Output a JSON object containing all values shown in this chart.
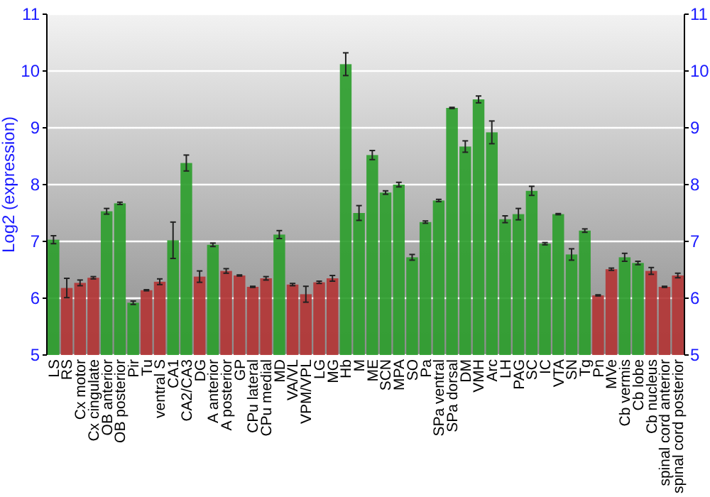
{
  "chart_data": {
    "type": "bar",
    "ylabel": "Log2 (expression)",
    "categories": [
      "LS",
      "RS",
      "Cx motor",
      "Cx cingulate",
      "OB anterior",
      "OB posterior",
      "Pir",
      "Tu",
      "ventral S",
      "CA1",
      "CA2/CA3",
      "DG",
      "A anterior",
      "A posterior",
      "GP",
      "CPu lateral",
      "CPu medial",
      "MD",
      "VA/VL",
      "VPM/VPL",
      "LG",
      "MG",
      "Hb",
      "M",
      "ME",
      "SCN",
      "MPA",
      "SO",
      "Pa",
      "SPa ventral",
      "SPa dorsal",
      "DM",
      "VMH",
      "Arc",
      "LH",
      "PAG",
      "SC",
      "IC",
      "VTA",
      "SN",
      "Tg",
      "Pn",
      "MVe",
      "Cb vermis",
      "Cb lobe",
      "Cb nucleus",
      "spinal cord anterior",
      "spinal cord posterior"
    ],
    "values": [
      7.03,
      6.18,
      6.27,
      6.36,
      7.53,
      7.67,
      5.92,
      6.14,
      6.29,
      7.02,
      8.38,
      6.38,
      6.94,
      6.48,
      6.4,
      6.2,
      6.35,
      7.12,
      6.24,
      6.07,
      6.28,
      6.35,
      10.12,
      7.5,
      8.52,
      7.86,
      8.0,
      6.72,
      7.34,
      7.72,
      9.35,
      8.67,
      9.5,
      8.92,
      7.39,
      7.48,
      7.89,
      6.96,
      7.48,
      6.77,
      7.19,
      6.05,
      6.51,
      6.72,
      6.62,
      6.48,
      6.2,
      6.4
    ],
    "errors": [
      0.07,
      0.17,
      0.05,
      0.02,
      0.05,
      0.02,
      0.03,
      0.01,
      0.05,
      0.32,
      0.14,
      0.1,
      0.03,
      0.04,
      0.01,
      0.01,
      0.03,
      0.07,
      0.02,
      0.14,
      0.02,
      0.05,
      0.2,
      0.13,
      0.08,
      0.03,
      0.04,
      0.05,
      0.02,
      0.02,
      0.01,
      0.1,
      0.06,
      0.2,
      0.06,
      0.1,
      0.08,
      0.02,
      0.01,
      0.1,
      0.03,
      0.01,
      0.02,
      0.07,
      0.03,
      0.06,
      0.01,
      0.04
    ],
    "colors": [
      "#2e9e2e",
      "#b33636",
      "#b33636",
      "#b33636",
      "#2e9e2e",
      "#2e9e2e",
      "#2e9e2e",
      "#b33636",
      "#b33636",
      "#2e9e2e",
      "#2e9e2e",
      "#b33636",
      "#2e9e2e",
      "#b33636",
      "#b33636",
      "#b33636",
      "#b33636",
      "#2e9e2e",
      "#b33636",
      "#b33636",
      "#b33636",
      "#b33636",
      "#2e9e2e",
      "#2e9e2e",
      "#2e9e2e",
      "#2e9e2e",
      "#2e9e2e",
      "#2e9e2e",
      "#2e9e2e",
      "#2e9e2e",
      "#2e9e2e",
      "#2e9e2e",
      "#2e9e2e",
      "#2e9e2e",
      "#2e9e2e",
      "#2e9e2e",
      "#2e9e2e",
      "#2e9e2e",
      "#2e9e2e",
      "#2e9e2e",
      "#2e9e2e",
      "#b33636",
      "#b33636",
      "#2e9e2e",
      "#2e9e2e",
      "#b33636",
      "#b33636",
      "#b33636"
    ],
    "ylim": [
      5,
      11
    ],
    "yticks": [
      5,
      6,
      7,
      8,
      9,
      10,
      11
    ],
    "y2lim": [
      5,
      11
    ],
    "y2ticks": [
      5,
      6,
      7,
      8,
      9,
      10,
      11
    ],
    "grid": "y"
  }
}
